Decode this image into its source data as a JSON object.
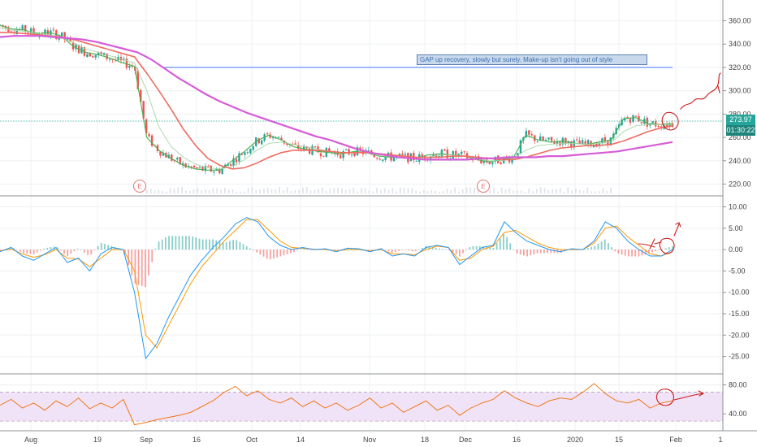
{
  "chart_data": [
    {
      "type": "line",
      "panel": "price",
      "y_ticks": [
        360,
        340,
        320,
        300,
        280,
        260,
        240,
        220
      ],
      "y_tick_labels": [
        "360.00",
        "340.00",
        "320.00",
        "300.00",
        "280.00",
        "260.00",
        "240.00",
        "220.00"
      ],
      "ylim": [
        212,
        375
      ],
      "x_tick_labels": [
        "Aug",
        "19",
        "Sep",
        "16",
        "Oct",
        "14",
        "Nov",
        "18",
        "Dec",
        "16",
        "2020",
        "15",
        "Feb",
        "1"
      ],
      "last_price_label": "273.97",
      "countdown_label": "01:30:22",
      "reference_lines": [
        273.97,
        320
      ],
      "earnings_markers": [
        "E",
        "E"
      ],
      "annotation": "GAP up recovery, slowly but surely. Make-up isn't going out of style",
      "series": [
        {
          "values": [
            356,
            353,
            352,
            349,
            350,
            347,
            338,
            333,
            331,
            328,
            324,
            321,
            260,
            249,
            242,
            236,
            233,
            232,
            232,
            240,
            248,
            257,
            262,
            258,
            252,
            250,
            248,
            247,
            246,
            248,
            247,
            244,
            243,
            243,
            242,
            245,
            246,
            245,
            244,
            241,
            239,
            241,
            243,
            262,
            258,
            256,
            257,
            255,
            254,
            256,
            258,
            276,
            277,
            272,
            271,
            272
          ]
        },
        {
          "values": [
            354,
            352,
            351,
            350,
            348,
            346,
            341,
            336,
            333,
            330,
            327,
            324,
            300,
            269,
            252,
            243,
            237,
            234,
            233,
            235,
            241,
            249,
            255,
            256,
            254,
            252,
            250,
            248,
            247,
            247,
            247,
            245,
            244,
            243,
            242,
            243,
            245,
            245,
            244,
            242,
            240,
            240,
            242,
            249,
            253,
            254,
            255,
            255,
            254,
            255,
            256,
            265,
            270,
            271,
            271,
            271
          ]
        },
        {
          "values": [
            350,
            350,
            349,
            348,
            347,
            346,
            344,
            341,
            338,
            335,
            332,
            329,
            315,
            300,
            284,
            267,
            253,
            242,
            236,
            233,
            234,
            238,
            243,
            247,
            249,
            249,
            249,
            248,
            247,
            247,
            247,
            246,
            245,
            244,
            243,
            243,
            243,
            244,
            244,
            243,
            242,
            241,
            241,
            243,
            246,
            249,
            251,
            252,
            253,
            253,
            254,
            257,
            261,
            265,
            268,
            270
          ]
        },
        {
          "values": [
            346,
            347,
            347,
            347,
            346,
            345,
            344,
            342,
            339,
            336,
            333,
            327,
            319,
            311,
            304,
            297,
            291,
            286,
            281,
            277,
            273,
            269,
            265,
            261,
            258,
            254,
            250,
            247,
            245,
            243,
            242,
            241,
            241,
            241,
            241,
            242,
            242,
            243,
            243,
            243,
            244,
            244,
            245,
            246,
            247,
            248,
            250,
            252,
            254,
            256
          ]
        }
      ]
    },
    {
      "type": "line",
      "panel": "macd",
      "y_ticks": [
        10,
        5,
        0,
        -5,
        -10,
        -15,
        -20,
        -25
      ],
      "y_tick_labels": [
        "10.00",
        "5.00",
        "0.00",
        "-5.00",
        "-10.00",
        "-15.00",
        "-20.00",
        "-25.00"
      ],
      "ylim": [
        -28.5,
        12
      ],
      "series": [
        {
          "values": [
            -0.5,
            0.5,
            -1.5,
            -2.5,
            -1,
            0.5,
            -3,
            -2,
            -5,
            -1,
            0.5,
            0,
            -10,
            -25.5,
            -22,
            -16,
            -11,
            -6,
            -2.5,
            0.5,
            3,
            6,
            7.5,
            6.5,
            3,
            1,
            0,
            0.5,
            0,
            0.2,
            -0.5,
            0.3,
            0.2,
            -0.5,
            0.2,
            -1.5,
            -1,
            -1.5,
            0.5,
            1,
            0.5,
            -3.5,
            -1.5,
            0.5,
            1,
            6.5,
            4,
            2,
            1,
            0,
            -0.5,
            0.2,
            0,
            2,
            6.5,
            5,
            2,
            0,
            -1.5,
            -1.5,
            0
          ]
        },
        {
          "values": [
            -0.3,
            0.1,
            -1,
            -1.8,
            -1.2,
            0,
            -2,
            -2.2,
            -4,
            -2,
            0,
            0,
            -5,
            -20,
            -23,
            -18,
            -13,
            -8,
            -4,
            -1,
            2,
            4.5,
            7,
            7,
            4.5,
            2,
            0.5,
            0.3,
            0.1,
            0,
            -0.3,
            0,
            0,
            -0.3,
            0,
            -1,
            -1,
            -1.2,
            0,
            0.8,
            0.5,
            -2.5,
            -2,
            0,
            0.8,
            4,
            4.5,
            3,
            1.5,
            0.5,
            0,
            0,
            0,
            1.5,
            5,
            5.5,
            3,
            1,
            -1,
            -1.5,
            -0.5
          ]
        }
      ]
    },
    {
      "type": "line",
      "panel": "rsi",
      "y_ticks": [
        80,
        40
      ],
      "y_tick_labels": [
        "80.00",
        "40.00"
      ],
      "ylim": [
        20,
        92
      ],
      "band": [
        70,
        30
      ],
      "series": [
        {
          "values": [
            52,
            60,
            48,
            55,
            45,
            58,
            50,
            62,
            47,
            55,
            48,
            60,
            25,
            28,
            32,
            35,
            38,
            42,
            50,
            58,
            70,
            78,
            65,
            72,
            60,
            55,
            62,
            50,
            58,
            48,
            55,
            45,
            52,
            62,
            48,
            55,
            42,
            50,
            58,
            45,
            52,
            38,
            48,
            55,
            60,
            72,
            62,
            55,
            50,
            58,
            62,
            60,
            70,
            82,
            68,
            58,
            55,
            60,
            48,
            55,
            58
          ]
        }
      ]
    }
  ]
}
